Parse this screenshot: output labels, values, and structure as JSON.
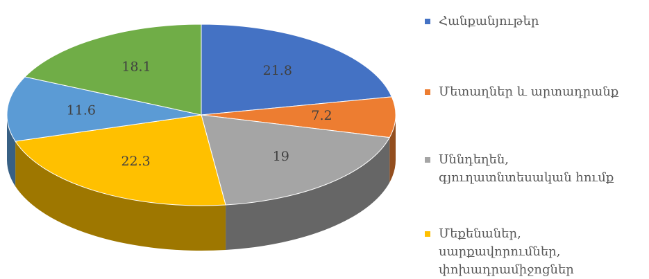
{
  "chart_data": {
    "type": "pie3d",
    "categories": [
      "Հանքանյութեր",
      "Մետաղներ և արտադրանք",
      "Սննդեղեն, գյուղատնտեսական հումք",
      "Մեքենաներ, սարքավորումներ, փոխադրամիջոցներ",
      null,
      null
    ],
    "values": [
      21.8,
      7.2,
      19,
      22.3,
      11.6,
      18.1
    ],
    "colors": [
      "#4472c4",
      "#ed7d31",
      "#a5a5a5",
      "#ffc000",
      "#5b9bd5",
      "#70ad47"
    ],
    "legend": "right"
  }
}
